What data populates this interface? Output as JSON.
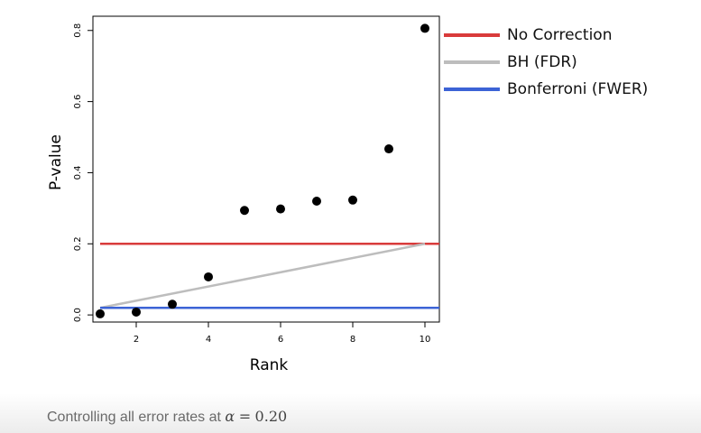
{
  "chart_data": {
    "type": "scatter",
    "xlabel": "Rank",
    "ylabel": "P-value",
    "xlim": [
      0.8,
      10.4
    ],
    "ylim": [
      -0.02,
      0.84
    ],
    "xticks": [
      "2",
      "4",
      "6",
      "8",
      "10"
    ],
    "yticks": [
      "0.0",
      "0.2",
      "0.4",
      "0.6",
      "0.8"
    ],
    "points": {
      "x": [
        1,
        2,
        3,
        4,
        5,
        6,
        7,
        8,
        9,
        10
      ],
      "y": [
        0.003,
        0.008,
        0.03,
        0.107,
        0.294,
        0.298,
        0.32,
        0.323,
        0.467,
        0.806
      ]
    },
    "lines": [
      {
        "name": "No Correction",
        "type": "hline",
        "y": 0.2,
        "color": "#d93b3b"
      },
      {
        "name": "BH (FDR)",
        "type": "segment",
        "x": [
          1,
          10
        ],
        "y": [
          0.02,
          0.2
        ],
        "color": "#bdbdbd"
      },
      {
        "name": "Bonferroni (FWER)",
        "type": "hline",
        "y": 0.02,
        "color": "#3c63d6"
      }
    ],
    "legend_position": "right"
  },
  "legend": {
    "items": [
      {
        "label": "No Correction",
        "color": "#d93b3b"
      },
      {
        "label": "BH (FDR)",
        "color": "#bdbdbd"
      },
      {
        "label": "Bonferroni (FWER)",
        "color": "#3c63d6"
      }
    ]
  },
  "caption": {
    "text": "Controlling all error rates at",
    "alpha": "α",
    "equals": "=",
    "value": "0.20"
  }
}
